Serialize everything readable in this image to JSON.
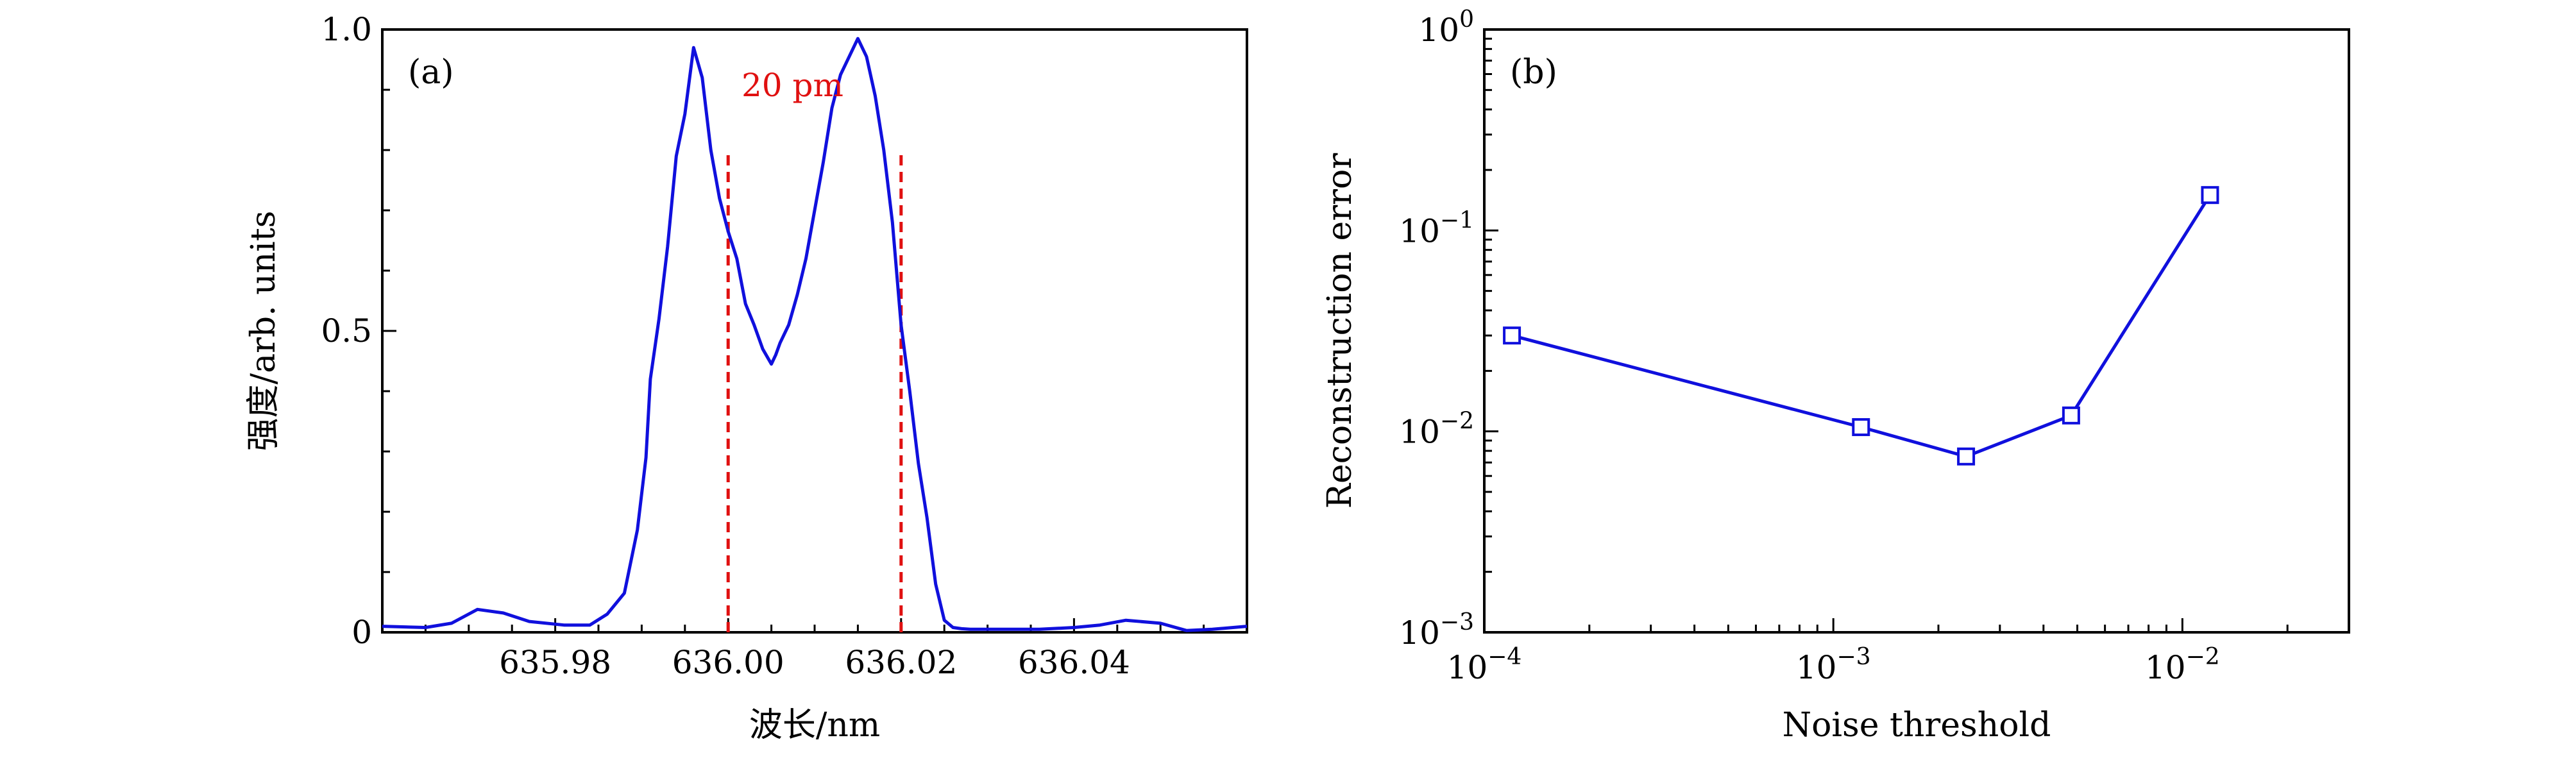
{
  "chart_data": [
    {
      "type": "line",
      "panel_label": "(a)",
      "xlabel": "波长/nm",
      "ylabel": "强度/arb. units",
      "xlim": [
        635.96,
        636.06
      ],
      "ylim": [
        0,
        1.0
      ],
      "xticks": [
        635.98,
        636.0,
        636.02,
        636.04
      ],
      "xtick_labels": [
        "635.98",
        "636.00",
        "636.02",
        "636.04"
      ],
      "yticks": [
        0,
        0.5,
        1.0
      ],
      "ytick_labels": [
        "0",
        "0.5",
        "1.0"
      ],
      "annotation": "20 pm",
      "colors": {
        "series": "#1010dd",
        "markers": "#e01010"
      },
      "series": [
        {
          "x": [
            635.96,
            635.965,
            635.968,
            635.971,
            635.974,
            635.977,
            635.981,
            635.984,
            635.986,
            635.988,
            635.9895,
            635.9905,
            635.991,
            635.992,
            635.993,
            635.994,
            635.995,
            635.996,
            635.997,
            635.998,
            635.999,
            636.0,
            636.001,
            636.002,
            636.003,
            636.004,
            636.005,
            636.0055,
            636.006,
            636.007,
            636.008,
            636.009,
            636.01,
            636.011,
            636.012,
            636.013,
            636.014,
            636.015,
            636.016,
            636.017,
            636.018,
            636.019,
            636.02,
            636.021,
            636.022,
            636.023,
            636.024,
            636.025,
            636.026,
            636.027,
            636.028,
            636.029,
            636.03,
            636.031,
            636.032,
            636.033,
            636.034,
            636.035,
            636.036,
            636.04,
            636.043,
            636.046,
            636.05,
            636.053,
            636.056,
            636.06
          ],
          "y": [
            0.01,
            0.008,
            0.015,
            0.038,
            0.032,
            0.018,
            0.012,
            0.012,
            0.03,
            0.065,
            0.17,
            0.29,
            0.42,
            0.52,
            0.64,
            0.79,
            0.86,
            0.97,
            0.92,
            0.8,
            0.72,
            0.665,
            0.62,
            0.545,
            0.51,
            0.47,
            0.445,
            0.46,
            0.48,
            0.51,
            0.56,
            0.62,
            0.7,
            0.78,
            0.87,
            0.925,
            0.955,
            0.985,
            0.955,
            0.89,
            0.8,
            0.68,
            0.51,
            0.4,
            0.28,
            0.19,
            0.08,
            0.02,
            0.008,
            0.006,
            0.005,
            0.005,
            0.005,
            0.005,
            0.005,
            0.005,
            0.005,
            0.005,
            0.005,
            0.008,
            0.012,
            0.02,
            0.015,
            0.003,
            0.005,
            0.01
          ]
        }
      ],
      "vlines": [
        636.0,
        636.02
      ]
    },
    {
      "type": "line",
      "panel_label": "(b)",
      "xlabel": "Noise threshold",
      "ylabel": "Reconstruction error",
      "xscale": "log",
      "yscale": "log",
      "xlim": [
        0.0001,
        0.03
      ],
      "ylim": [
        0.001,
        1
      ],
      "xticks": [
        0.0001,
        0.001,
        0.01
      ],
      "xtick_labels": [
        [
          "10",
          "−4"
        ],
        [
          "10",
          "−3"
        ],
        [
          "10",
          "−2"
        ]
      ],
      "yticks": [
        0.001,
        0.01,
        0.1,
        1
      ],
      "ytick_labels": [
        [
          "10",
          "−3"
        ],
        [
          "10",
          "−2"
        ],
        [
          "10",
          "−1"
        ],
        [
          "10",
          "0"
        ]
      ],
      "colors": {
        "series": "#1010dd"
      },
      "series": [
        {
          "x": [
            0.00012,
            0.0012,
            0.0024,
            0.0048,
            0.012
          ],
          "y": [
            0.03,
            0.0105,
            0.0075,
            0.012,
            0.15
          ],
          "marker": "square"
        }
      ]
    }
  ]
}
